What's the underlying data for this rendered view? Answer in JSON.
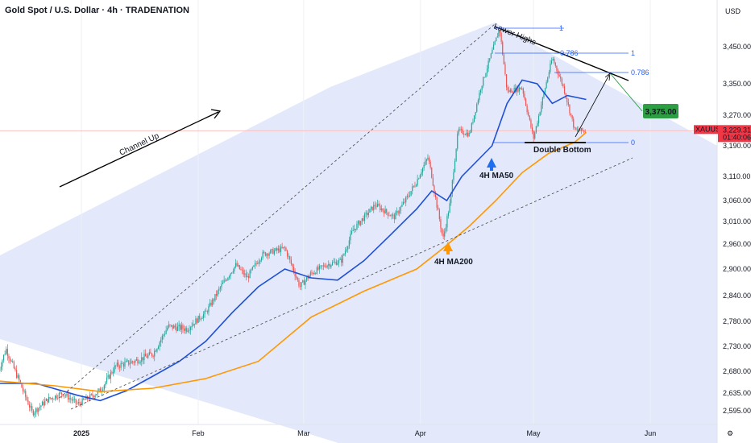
{
  "header": {
    "title": "Gold Spot / U.S. Dollar · 4h · TRADENATION"
  },
  "chart_data": {
    "type": "line",
    "symbol": "XAUUSD",
    "currency_label": "USD",
    "y_ticks": [
      3450,
      3350,
      3270,
      3190,
      3110,
      3060,
      3010,
      2960,
      2900,
      2840,
      2780,
      2730,
      2680,
      2635,
      2595
    ],
    "y_tick_labels": [
      "3,450.00",
      "3,350.00",
      "3,270.00",
      "3,190.00",
      "3,110.00",
      "3,060.00",
      "3,010.00",
      "2,960.00",
      "2,900.00",
      "2,840.00",
      "2,780.00",
      "2,730.00",
      "2,680.00",
      "2,635.00",
      "2,595.00"
    ],
    "x_labels": [
      {
        "label": "2025",
        "date": "2025-01-01",
        "bold": true
      },
      {
        "label": "Feb",
        "date": "2025-02-01",
        "bold": false
      },
      {
        "label": "Mar",
        "date": "2025-03-01",
        "bold": false
      },
      {
        "label": "Apr",
        "date": "2025-04-01",
        "bold": false
      },
      {
        "label": "May",
        "date": "2025-05-01",
        "bold": false
      },
      {
        "label": "Jun",
        "date": "2025-06-01",
        "bold": false
      }
    ],
    "last_price": {
      "value": 3229.31,
      "label": "3,229.31",
      "countdown": "01:40:06"
    },
    "target": {
      "value": 3375,
      "label": "3,375.00"
    },
    "price": [
      [
        "2024-12-10",
        2680
      ],
      [
        "2024-12-12",
        2725
      ],
      [
        "2024-12-16",
        2650
      ],
      [
        "2024-12-19",
        2590
      ],
      [
        "2024-12-23",
        2620
      ],
      [
        "2024-12-27",
        2635
      ],
      [
        "2024-12-31",
        2610
      ],
      [
        "2025-01-06",
        2640
      ],
      [
        "2025-01-10",
        2690
      ],
      [
        "2025-01-15",
        2700
      ],
      [
        "2025-01-20",
        2715
      ],
      [
        "2025-01-24",
        2770
      ],
      [
        "2025-01-29",
        2765
      ],
      [
        "2025-02-03",
        2800
      ],
      [
        "2025-02-07",
        2860
      ],
      [
        "2025-02-11",
        2910
      ],
      [
        "2025-02-14",
        2880
      ],
      [
        "2025-02-18",
        2935
      ],
      [
        "2025-02-24",
        2950
      ],
      [
        "2025-02-28",
        2860
      ],
      [
        "2025-03-03",
        2890
      ],
      [
        "2025-03-07",
        2910
      ],
      [
        "2025-03-11",
        2920
      ],
      [
        "2025-03-14",
        2990
      ],
      [
        "2025-03-20",
        3050
      ],
      [
        "2025-03-25",
        3020
      ],
      [
        "2025-03-31",
        3100
      ],
      [
        "2025-04-03",
        3160
      ],
      [
        "2025-04-07",
        2970
      ],
      [
        "2025-04-09",
        3060
      ],
      [
        "2025-04-11",
        3230
      ],
      [
        "2025-04-14",
        3220
      ],
      [
        "2025-04-17",
        3340
      ],
      [
        "2025-04-22",
        3500
      ],
      [
        "2025-04-24",
        3330
      ],
      [
        "2025-04-28",
        3340
      ],
      [
        "2025-05-01",
        3210
      ],
      [
        "2025-05-06",
        3420
      ],
      [
        "2025-05-09",
        3340
      ],
      [
        "2025-05-12",
        3230
      ],
      [
        "2025-05-15",
        3229
      ]
    ],
    "series": [
      {
        "name": "4H MA50",
        "color": "#1e4fd7",
        "points": [
          [
            "2024-12-10",
            2655
          ],
          [
            "2024-12-20",
            2655
          ],
          [
            "2024-12-31",
            2630
          ],
          [
            "2025-01-06",
            2618
          ],
          [
            "2025-01-13",
            2640
          ],
          [
            "2025-01-20",
            2670
          ],
          [
            "2025-01-27",
            2700
          ],
          [
            "2025-02-03",
            2740
          ],
          [
            "2025-02-10",
            2800
          ],
          [
            "2025-02-17",
            2860
          ],
          [
            "2025-02-24",
            2900
          ],
          [
            "2025-03-03",
            2880
          ],
          [
            "2025-03-10",
            2875
          ],
          [
            "2025-03-17",
            2920
          ],
          [
            "2025-03-24",
            2980
          ],
          [
            "2025-03-31",
            3040
          ],
          [
            "2025-04-04",
            3080
          ],
          [
            "2025-04-08",
            3060
          ],
          [
            "2025-04-12",
            3110
          ],
          [
            "2025-04-16",
            3150
          ],
          [
            "2025-04-20",
            3190
          ],
          [
            "2025-04-24",
            3300
          ],
          [
            "2025-04-28",
            3360
          ],
          [
            "2025-05-02",
            3350
          ],
          [
            "2025-05-06",
            3300
          ],
          [
            "2025-05-10",
            3320
          ],
          [
            "2025-05-15",
            3310
          ]
        ]
      },
      {
        "name": "4H MA200",
        "color": "#ff9800",
        "points": [
          [
            "2024-12-10",
            2660
          ],
          [
            "2024-12-25",
            2650
          ],
          [
            "2025-01-06",
            2638
          ],
          [
            "2025-01-20",
            2645
          ],
          [
            "2025-02-03",
            2665
          ],
          [
            "2025-02-17",
            2700
          ],
          [
            "2025-03-03",
            2790
          ],
          [
            "2025-03-17",
            2850
          ],
          [
            "2025-03-31",
            2900
          ],
          [
            "2025-04-07",
            2950
          ],
          [
            "2025-04-14",
            3000
          ],
          [
            "2025-04-21",
            3060
          ],
          [
            "2025-04-28",
            3120
          ],
          [
            "2025-05-05",
            3170
          ],
          [
            "2025-05-12",
            3200
          ],
          [
            "2025-05-15",
            3225
          ]
        ]
      }
    ],
    "channel_label": "Channel Up",
    "annotations": {
      "lower_highs": "Lower Highs",
      "double_bottom": "Double Bottom",
      "ma50": "4H MA50",
      "ma200": "4H MA200"
    },
    "fib": [
      {
        "level": "1",
        "value": 3500
      },
      {
        "level": "0.786",
        "value": 3440
      },
      {
        "level": "0",
        "value": 3200
      },
      {
        "level": "1",
        "value": 3440
      },
      {
        "level": "0.786",
        "value": 3385
      },
      {
        "level": "0",
        "value": 3200
      }
    ],
    "colors": {
      "channel_fill": "#e3e9fb",
      "up_candle": "#26a69a",
      "down_candle": "#ef5350",
      "ma50": "#1e4fd7",
      "ma200": "#ff9800",
      "target": "#2e9e44",
      "last_price": "#f23645",
      "fib": "#2962ff",
      "annotation_arrow_up": "#1e6ff0",
      "annotation_arrow_ma200": "#ff9800"
    }
  }
}
